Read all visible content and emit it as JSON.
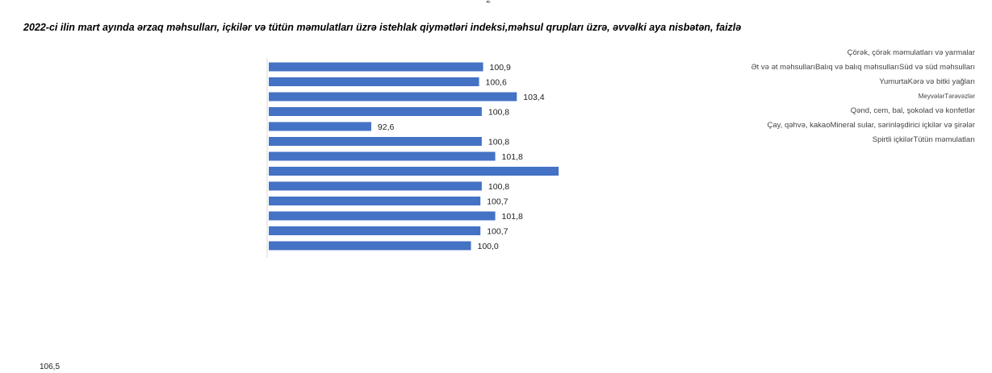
{
  "page_number": "2",
  "legend_lines": [
    "Çörək, çörək məmulatları və yarmalar",
    "Ət və ət məhsullarıBalıq və balıq məhsullarıSüd və süd məhsulları",
    "YumurtaKərə və bitki yağları",
    "MeyvələrTərəvəzlər",
    "Qənd, cem, bal, şokolad və konfetlər",
    "Çay, qəhvə, kakaoMineral sular, sərinləşdirici içkilər və şirələr",
    "Spirtli içkilərTütün məmulatları"
  ],
  "stray_label": "106,5",
  "chart_data": {
    "type": "bar",
    "orientation": "horizontal",
    "title": "2022-ci ilin mart ayında ərzaq məhsulları, içkilər və tütün məmulatları üzrə istehlak qiymətləri indeksi,məhsul qrupları üzrə, əvvəlki aya nisbətən, faizlə",
    "categories": [
      "Çörək, çörək məmulatları və yarmalar",
      "Ət və ət məhsulları",
      "Balıq və balıq məhsulları",
      "Süd və süd məhsulları",
      "Yumurta",
      "Kərə və bitki yağları",
      "Meyvələr",
      "Tərəvəzlər",
      "Qənd, cem, bal, şokolad və konfetlər",
      "Çay, qəhvə, kakao",
      "Mineral sular, sərinləşdirici içkilər və şirələr",
      "Spirtli içkilər",
      "Tütün məmulatları"
    ],
    "values": [
      100.9,
      100.6,
      103.4,
      100.8,
      92.6,
      100.8,
      101.8,
      106.5,
      100.8,
      100.7,
      101.8,
      100.7,
      100.0
    ],
    "data_labels": [
      "100,9",
      "100,6",
      "103,4",
      "100,8",
      "92,6",
      "100,8",
      "101,8",
      "",
      "100,8",
      "100,7",
      "101,8",
      "100,7",
      "100,0"
    ],
    "xlim": [
      85,
      110
    ],
    "bar_color": "#4472c4",
    "grid": false,
    "legend_position": "right"
  }
}
